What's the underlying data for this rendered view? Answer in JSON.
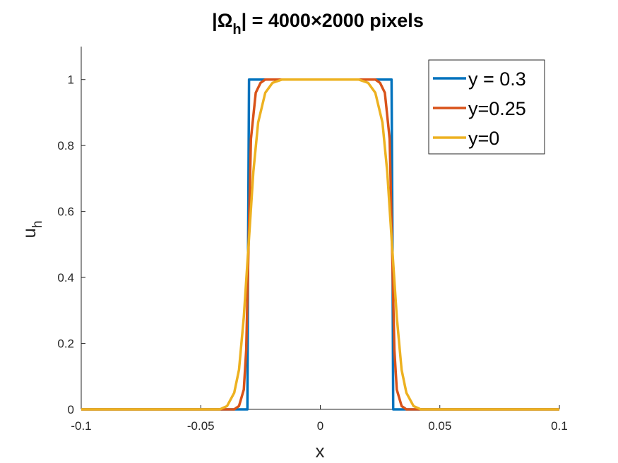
{
  "chart_data": {
    "type": "line",
    "title_parts": {
      "prefix": "|Ω",
      "sub": "h",
      "suffix": "| = 4000×2000 pixels"
    },
    "xlabel": "x",
    "ylabel": {
      "base": "u",
      "sub": "h"
    },
    "xlim": [
      -0.1,
      0.1
    ],
    "ylim": [
      0,
      1.1
    ],
    "xticks": [
      -0.1,
      -0.05,
      0,
      0.05,
      0.1
    ],
    "xtick_labels": [
      "-0.1",
      "-0.05",
      "0",
      "0.05",
      "0.1"
    ],
    "yticks": [
      0,
      0.2,
      0.4,
      0.6,
      0.8,
      1
    ],
    "ytick_labels": [
      "0",
      "0.2",
      "0.4",
      "0.6",
      "0.8",
      "1"
    ],
    "grid": false,
    "legend_position": "top-right",
    "series": [
      {
        "name": "y = 0.3",
        "color": "#0072BD",
        "x": [
          -0.1,
          -0.0305,
          -0.0302,
          -0.0298,
          0.0298,
          0.0302,
          0.0305,
          0.1
        ],
        "y": [
          0,
          0,
          0.5,
          1,
          1,
          0.5,
          0,
          0
        ]
      },
      {
        "name": "y=0.25",
        "color": "#D95319",
        "x": [
          -0.1,
          -0.036,
          -0.034,
          -0.032,
          -0.031,
          -0.03,
          -0.029,
          -0.027,
          -0.025,
          -0.023,
          0.023,
          0.025,
          0.027,
          0.029,
          0.03,
          0.031,
          0.032,
          0.034,
          0.036,
          0.1
        ],
        "y": [
          0,
          0,
          0.01,
          0.06,
          0.18,
          0.5,
          0.82,
          0.96,
          0.99,
          1,
          1,
          0.99,
          0.96,
          0.82,
          0.5,
          0.18,
          0.06,
          0.01,
          0,
          0
        ]
      },
      {
        "name": "y=0",
        "color": "#EDB120",
        "x": [
          -0.1,
          -0.042,
          -0.039,
          -0.036,
          -0.034,
          -0.032,
          -0.03,
          -0.028,
          -0.026,
          -0.023,
          -0.02,
          -0.016,
          0.016,
          0.02,
          0.023,
          0.026,
          0.028,
          0.03,
          0.032,
          0.034,
          0.036,
          0.039,
          0.042,
          0.1
        ],
        "y": [
          0,
          0,
          0.01,
          0.05,
          0.12,
          0.28,
          0.5,
          0.72,
          0.87,
          0.96,
          0.99,
          1,
          1,
          0.99,
          0.96,
          0.87,
          0.72,
          0.5,
          0.28,
          0.12,
          0.05,
          0.01,
          0,
          0
        ]
      }
    ]
  }
}
